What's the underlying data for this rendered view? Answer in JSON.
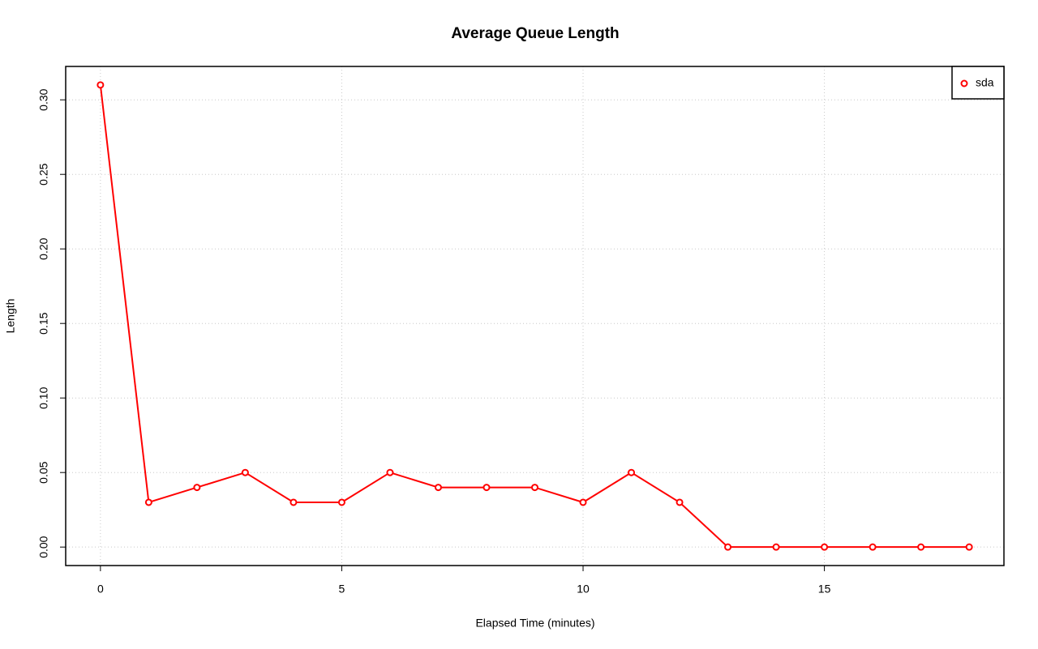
{
  "chart_data": {
    "type": "line",
    "title": "Average Queue Length",
    "x_label": "Elapsed Time (minutes)",
    "y_label": "Length",
    "x": [
      0,
      1,
      2,
      3,
      4,
      5,
      6,
      7,
      8,
      9,
      10,
      11,
      12,
      13,
      14,
      15,
      16,
      17,
      18
    ],
    "series": [
      {
        "name": "sda",
        "color": "#ff0000",
        "values": [
          0.31,
          0.03,
          0.04,
          0.05,
          0.03,
          0.03,
          0.05,
          0.04,
          0.04,
          0.04,
          0.03,
          0.05,
          0.03,
          0,
          0,
          0,
          0,
          0,
          0
        ]
      }
    ],
    "xlim": [
      -0.72,
      18.72
    ],
    "ylim": [
      -0.0124,
      0.3224
    ],
    "xticks": [
      0,
      5,
      10,
      15
    ],
    "yticks": [
      {
        "value": 0,
        "label": "0.00"
      },
      {
        "value": 0.05,
        "label": "0.05"
      },
      {
        "value": 0.1,
        "label": "0.10"
      },
      {
        "value": 0.15,
        "label": "0.15"
      },
      {
        "value": 0.2,
        "label": "0.20"
      },
      {
        "value": 0.25,
        "label": "0.25"
      },
      {
        "value": 0.3,
        "label": "0.30"
      }
    ],
    "grid": true,
    "legend": "top-right"
  }
}
